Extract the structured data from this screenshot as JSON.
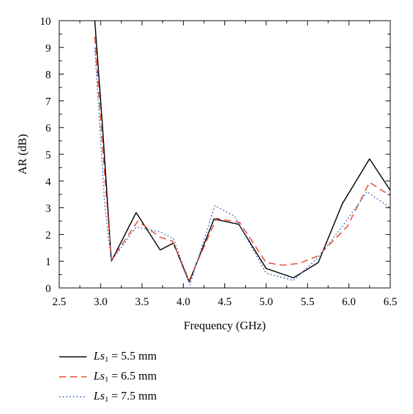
{
  "chart_data": {
    "type": "line",
    "xlabel": "Frequency (GHz)",
    "ylabel": "AR (dB)",
    "xlim": [
      2.5,
      6.5
    ],
    "ylim": [
      0,
      10
    ],
    "xticks": [
      "2.5",
      "3.0",
      "3.5",
      "4.0",
      "4.5",
      "5.0",
      "5.5",
      "6.0",
      "6.5"
    ],
    "yticks": [
      "0",
      "1",
      "2",
      "3",
      "4",
      "5",
      "6",
      "7",
      "8",
      "9",
      "10"
    ],
    "grid": false,
    "legend_position": "below",
    "series": [
      {
        "name": "Ls1 = 5.5 mm",
        "name_parts": {
          "var": "Ls",
          "sub": "1",
          "rest": " = 5.5 mm"
        },
        "color": "#000000",
        "style": "solid",
        "x": [
          2.93,
          3.02,
          3.13,
          3.43,
          3.72,
          3.88,
          4.07,
          4.37,
          4.67,
          5.0,
          5.33,
          5.63,
          5.92,
          6.25,
          6.5
        ],
        "y": [
          10.0,
          6.2,
          1.0,
          2.82,
          1.42,
          1.68,
          0.22,
          2.58,
          2.38,
          0.73,
          0.38,
          0.95,
          3.15,
          4.83,
          3.65
        ]
      },
      {
        "name": "Ls1 = 6.5 mm",
        "name_parts": {
          "var": "Ls",
          "sub": "1",
          "rest": " = 6.5 mm"
        },
        "color": "#e8442a",
        "style": "dashed",
        "x": [
          2.93,
          3.05,
          3.13,
          3.45,
          3.72,
          3.87,
          4.07,
          4.4,
          4.68,
          5.0,
          5.2,
          5.4,
          5.63,
          5.98,
          6.25,
          6.5
        ],
        "y": [
          9.4,
          4.2,
          1.05,
          2.5,
          1.9,
          1.75,
          0.28,
          2.6,
          2.45,
          0.95,
          0.85,
          0.92,
          1.2,
          2.3,
          3.95,
          3.45
        ]
      },
      {
        "name": "Ls1 = 7.5 mm",
        "name_parts": {
          "var": "Ls",
          "sub": "1",
          "rest": " = 7.5 mm"
        },
        "color": "#4a72c8",
        "style": "dotted",
        "x": [
          2.93,
          3.05,
          3.13,
          3.43,
          3.72,
          3.88,
          4.08,
          4.38,
          4.62,
          5.0,
          5.33,
          5.63,
          5.92,
          6.22,
          6.5
        ],
        "y": [
          9.0,
          3.1,
          1.0,
          2.28,
          2.1,
          1.85,
          0.12,
          3.08,
          2.68,
          0.55,
          0.28,
          1.15,
          2.3,
          3.6,
          3.0
        ]
      }
    ]
  }
}
